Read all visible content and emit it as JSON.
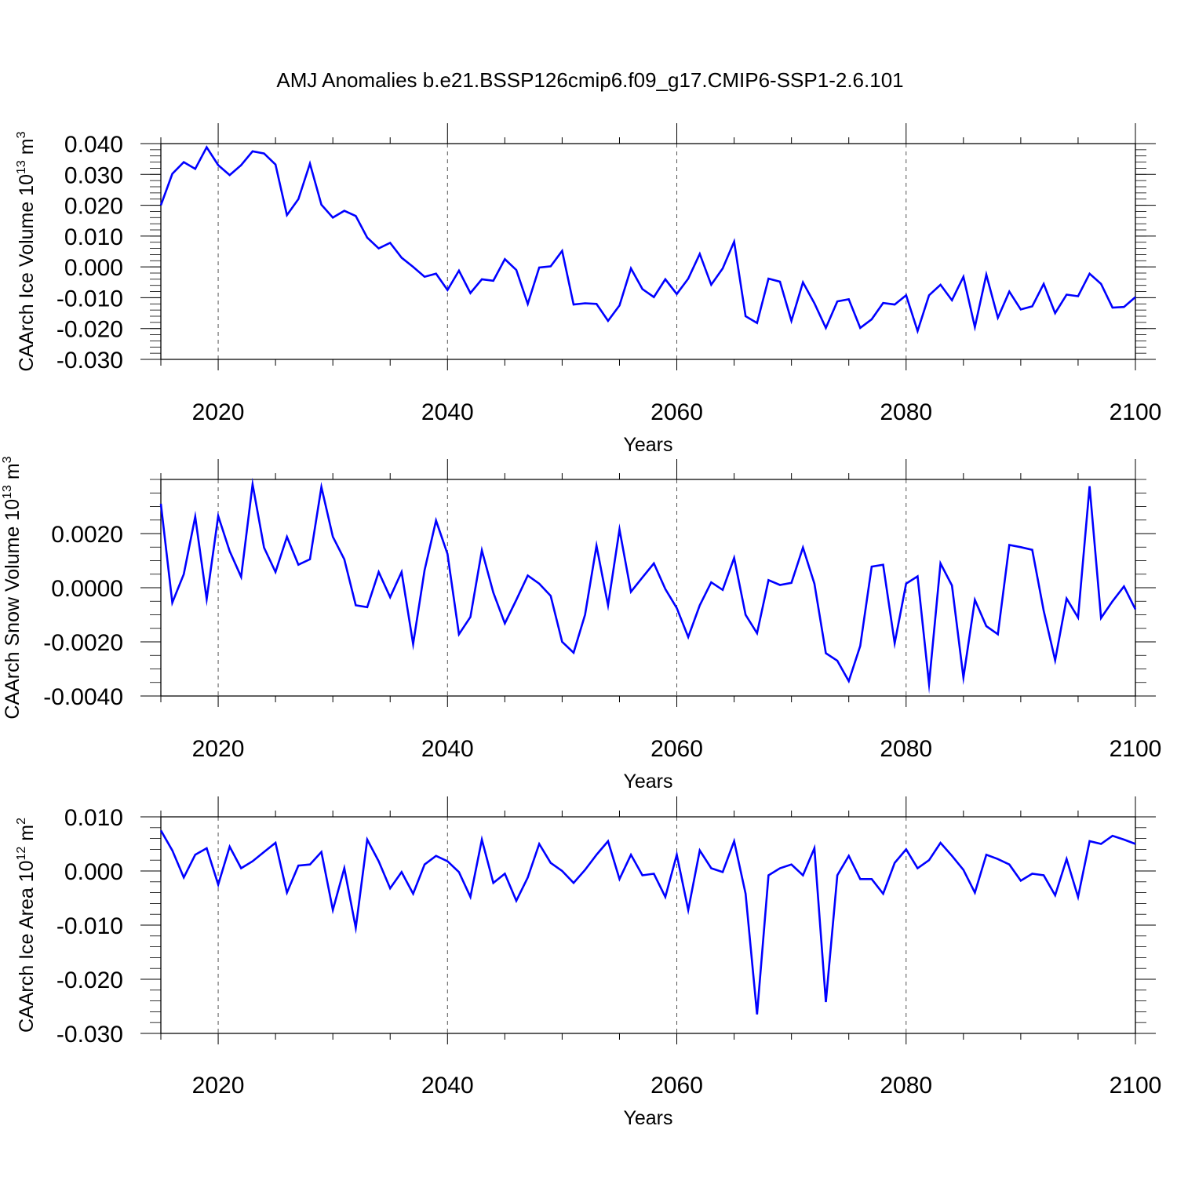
{
  "title": "AMJ Anomalies b.e21.BSSP126cmip6.f09_g17.CMIP6-SSP1-2.6.101",
  "colors": {
    "line": "#0000ff",
    "axis": "#000000",
    "grid": "#555555"
  },
  "chart_data": [
    {
      "type": "line",
      "ylabel": "CAArch Ice Volume 10",
      "ylabel_exp": "13",
      "ylabel_unit": "m",
      "ylabel_unit_exp": "3",
      "xlabel": "Years",
      "xlim": [
        2015,
        2100
      ],
      "ylim": [
        -0.03,
        0.04
      ],
      "x_ticks": [
        2020,
        2040,
        2060,
        2080,
        2100
      ],
      "x_tick_labels": [
        "2020",
        "2040",
        "2060",
        "2080",
        "2100"
      ],
      "y_ticks": [
        -0.03,
        -0.02,
        -0.01,
        0.0,
        0.01,
        0.02,
        0.03,
        0.04
      ],
      "y_tick_labels": [
        "-0.030",
        "-0.020",
        "-0.010",
        "0.000",
        "0.010",
        "0.020",
        "0.030",
        "0.040"
      ],
      "y_minor_step": 0.002,
      "frame_top": true,
      "grid": "dashed vertical at major x ticks",
      "series": [
        {
          "name": "CAArch Ice Volume",
          "x_start": 2015,
          "x_step": 1,
          "values": [
            0.02,
            0.0302,
            0.034,
            0.0318,
            0.0388,
            0.033,
            0.0298,
            0.033,
            0.0375,
            0.0368,
            0.0332,
            0.0168,
            0.022,
            0.0335,
            0.0202,
            0.016,
            0.0182,
            0.0165,
            0.0095,
            0.006,
            0.0078,
            0.003,
            0.0,
            -0.0032,
            -0.0022,
            -0.0075,
            -0.0012,
            -0.0085,
            -0.004,
            -0.0045,
            0.0025,
            -0.001,
            -0.012,
            -0.0002,
            0.0002,
            0.0052,
            -0.0122,
            -0.0118,
            -0.012,
            -0.0175,
            -0.0125,
            -0.0005,
            -0.0072,
            -0.0098,
            -0.004,
            -0.0088,
            -0.0038,
            0.0042,
            -0.0058,
            -0.0005,
            0.0082,
            -0.016,
            -0.0182,
            -0.0038,
            -0.0048,
            -0.0175,
            -0.005,
            -0.0118,
            -0.0198,
            -0.0112,
            -0.0105,
            -0.0198,
            -0.017,
            -0.0117,
            -0.0122,
            -0.0092,
            -0.0208,
            -0.0092,
            -0.0058,
            -0.0108,
            -0.0032,
            -0.0195,
            -0.0025,
            -0.0165,
            -0.008,
            -0.0138,
            -0.0128,
            -0.0055,
            -0.015,
            -0.009,
            -0.0095,
            -0.0022,
            -0.0055,
            -0.0132,
            -0.013,
            -0.0098
          ]
        }
      ]
    },
    {
      "type": "line",
      "ylabel": "CAArch Snow Volume 10",
      "ylabel_exp": "13",
      "ylabel_unit": "m",
      "ylabel_unit_exp": "3",
      "xlabel": "Years",
      "xlim": [
        2015,
        2100
      ],
      "ylim": [
        -0.004,
        0.004
      ],
      "x_ticks": [
        2020,
        2040,
        2060,
        2080,
        2100
      ],
      "x_tick_labels": [
        "2020",
        "2040",
        "2060",
        "2080",
        "2100"
      ],
      "y_ticks": [
        -0.004,
        -0.002,
        0.0,
        0.002
      ],
      "y_tick_labels": [
        "-0.0040",
        "-0.0020",
        "0.0000",
        "0.0020"
      ],
      "y_minor_step": 0.0005,
      "frame_top": true,
      "grid": "dashed vertical at major x ticks",
      "series": [
        {
          "name": "CAArch Snow Volume",
          "x_start": 2015,
          "x_step": 1,
          "values": [
            0.0031,
            -0.00055,
            0.0005,
            0.00262,
            -0.00042,
            0.00265,
            0.00135,
            0.0004,
            0.00382,
            0.00148,
            0.00058,
            0.00188,
            0.00085,
            0.00105,
            0.00372,
            0.00188,
            0.00105,
            -0.00065,
            -0.00072,
            0.00058,
            -0.00035,
            0.00058,
            -0.00208,
            0.00065,
            0.00248,
            0.00125,
            -0.00172,
            -0.00108,
            0.00138,
            -0.00018,
            -0.00132,
            -0.00045,
            0.00045,
            0.00015,
            -0.0003,
            -0.002,
            -0.0024,
            -0.001,
            0.00155,
            -0.00065,
            0.00215,
            -0.00015,
            0.00038,
            0.0009,
            -5e-05,
            -0.00075,
            -0.00182,
            -0.00065,
            0.0002,
            -8e-05,
            0.0011,
            -0.001,
            -0.00168,
            0.00028,
            0.0001,
            0.00018,
            0.00148,
            0.00015,
            -0.00242,
            -0.0027,
            -0.00345,
            -0.00215,
            0.00078,
            0.00085,
            -0.00205,
            0.00015,
            0.00042,
            -0.00355,
            0.0009,
            8e-05,
            -0.00332,
            -0.00045,
            -0.00142,
            -0.00172,
            0.00158,
            0.0015,
            0.0014,
            -0.00085,
            -0.00268,
            -0.0004,
            -0.0011,
            0.00375,
            -0.00112,
            -0.0005,
            5e-05,
            -0.0008
          ]
        }
      ]
    },
    {
      "type": "line",
      "ylabel": "CAArch Ice Area 10",
      "ylabel_exp": "12",
      "ylabel_unit": "m",
      "ylabel_unit_exp": "2",
      "xlabel": "Years",
      "xlim": [
        2015,
        2100
      ],
      "ylim": [
        -0.03,
        0.01
      ],
      "x_ticks": [
        2020,
        2040,
        2060,
        2080,
        2100
      ],
      "x_tick_labels": [
        "2020",
        "2040",
        "2060",
        "2080",
        "2100"
      ],
      "y_ticks": [
        -0.03,
        -0.02,
        -0.01,
        0.0,
        0.01
      ],
      "y_tick_labels": [
        "-0.030",
        "-0.020",
        "-0.010",
        "0.000",
        "0.010"
      ],
      "y_minor_step": 0.002,
      "frame_top": true,
      "grid": "dashed vertical at major x ticks",
      "series": [
        {
          "name": "CAArch Ice Area",
          "x_start": 2015,
          "x_step": 1,
          "values": [
            0.0075,
            0.0038,
            -0.0012,
            0.003,
            0.0042,
            -0.0025,
            0.0045,
            0.0005,
            0.0018,
            0.0035,
            0.0052,
            -0.004,
            0.001,
            0.0012,
            0.0035,
            -0.0072,
            0.0005,
            -0.0105,
            0.0058,
            0.0018,
            -0.0032,
            -0.0002,
            -0.0042,
            0.0012,
            0.0028,
            0.0018,
            -0.0002,
            -0.0048,
            0.0058,
            -0.0022,
            -0.0005,
            -0.0055,
            -0.0012,
            0.005,
            0.0015,
            0.0,
            -0.0022,
            0.0002,
            0.003,
            0.0055,
            -0.0015,
            0.003,
            -0.0008,
            -0.0005,
            -0.0048,
            0.003,
            -0.0072,
            0.0038,
            0.0005,
            -0.0002,
            0.0055,
            -0.0042,
            -0.0265,
            -0.0008,
            0.0005,
            0.0012,
            -0.0008,
            0.0042,
            -0.0242,
            -0.0008,
            0.0028,
            -0.0015,
            -0.0015,
            -0.0042,
            0.0015,
            0.004,
            0.0005,
            0.002,
            0.0052,
            0.0028,
            0.0002,
            -0.004,
            0.003,
            0.0022,
            0.0012,
            -0.0018,
            -0.0005,
            -0.0008,
            -0.0045,
            0.0022,
            -0.0048,
            0.0055,
            0.005,
            0.0065,
            0.0058,
            0.005
          ]
        }
      ]
    }
  ]
}
